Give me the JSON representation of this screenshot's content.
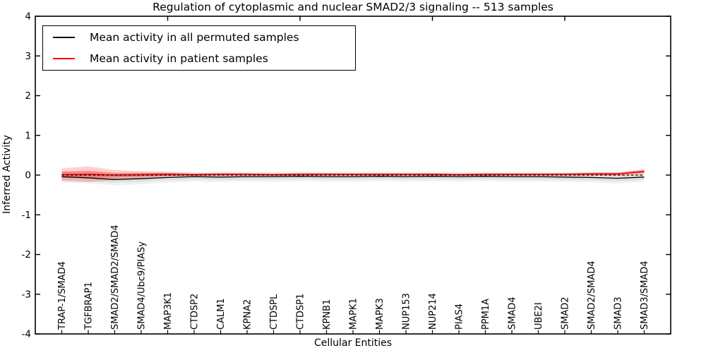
{
  "legend": {
    "entries": [
      {
        "label": "Mean activity in all permuted samples",
        "color": "#000000"
      },
      {
        "label": "Mean activity in patient samples",
        "color": "#ff0000"
      }
    ]
  },
  "chart_data": {
    "type": "line",
    "title": "Regulation of cytoplasmic and nuclear SMAD2/3 signaling -- 513 samples",
    "xlabel": "Cellular Entities",
    "ylabel": "Inferred Activity",
    "ylim": [
      -4,
      4
    ],
    "yticks": [
      4,
      3,
      2,
      1,
      0,
      -1,
      -2,
      -3,
      -4
    ],
    "xticks_top": [
      5,
      10,
      15,
      20
    ],
    "grid": false,
    "legend_position": "upper left",
    "zero_line": {
      "value": 0,
      "style": "dashed",
      "color": "#000000"
    },
    "categories": [
      "TRAP-1/SMAD4",
      "TGFBRAP1",
      "SMAD2/SMAD2/SMAD4",
      "SMAD4/Ubc9/PIASy",
      "MAP3K1",
      "CTDSP2",
      "CALM1",
      "KPNA2",
      "CTDSPL",
      "CTDSP1",
      "KPNB1",
      "MAPK1",
      "MAPK3",
      "NUP153",
      "NUP214",
      "PIAS4",
      "PPM1A",
      "SMAD4",
      "UBE2I",
      "SMAD2",
      "SMAD2/SMAD4",
      "SMAD3",
      "SMAD3/SMAD4"
    ],
    "series": [
      {
        "name": "Mean activity in all permuted samples",
        "color": "#000000",
        "band_color": "#777777",
        "band_opacity_outer": 0.1,
        "band_opacity_inner": 0.13,
        "values": [
          -0.04,
          -0.07,
          -0.11,
          -0.09,
          -0.06,
          -0.04,
          -0.05,
          -0.04,
          -0.04,
          -0.03,
          -0.04,
          -0.04,
          -0.03,
          -0.04,
          -0.03,
          -0.04,
          -0.03,
          -0.04,
          -0.04,
          -0.05,
          -0.06,
          -0.08,
          -0.05
        ],
        "spread_outer": [
          0.14,
          0.14,
          0.15,
          0.14,
          0.13,
          0.12,
          0.13,
          0.12,
          0.13,
          0.12,
          0.12,
          0.13,
          0.12,
          0.12,
          0.12,
          0.12,
          0.12,
          0.12,
          0.12,
          0.12,
          0.12,
          0.13,
          0.12
        ],
        "spread_inner": [
          0.08,
          0.08,
          0.08,
          0.08,
          0.07,
          0.07,
          0.07,
          0.07,
          0.07,
          0.07,
          0.07,
          0.07,
          0.07,
          0.07,
          0.07,
          0.07,
          0.07,
          0.07,
          0.07,
          0.07,
          0.07,
          0.08,
          0.07
        ]
      },
      {
        "name": "Mean activity in patient samples",
        "color": "#ff0000",
        "band_color": "#ff0000",
        "band_opacity_outer": 0.18,
        "band_opacity_inner": 0.32,
        "values": [
          0.01,
          0.02,
          0.0,
          0.01,
          0.02,
          0.01,
          0.02,
          0.02,
          0.01,
          0.02,
          0.02,
          0.02,
          0.02,
          0.02,
          0.02,
          0.01,
          0.02,
          0.02,
          0.02,
          0.02,
          0.03,
          0.03,
          0.09
        ],
        "spread_outer": [
          0.16,
          0.2,
          0.13,
          0.09,
          0.06,
          0.04,
          0.04,
          0.035,
          0.035,
          0.035,
          0.035,
          0.03,
          0.03,
          0.03,
          0.03,
          0.03,
          0.03,
          0.03,
          0.03,
          0.035,
          0.04,
          0.04,
          0.06
        ],
        "spread_inner": [
          0.08,
          0.09,
          0.06,
          0.05,
          0.035,
          0.025,
          0.025,
          0.02,
          0.02,
          0.02,
          0.02,
          0.02,
          0.02,
          0.02,
          0.02,
          0.02,
          0.02,
          0.02,
          0.02,
          0.02,
          0.025,
          0.025,
          0.035
        ]
      }
    ]
  }
}
